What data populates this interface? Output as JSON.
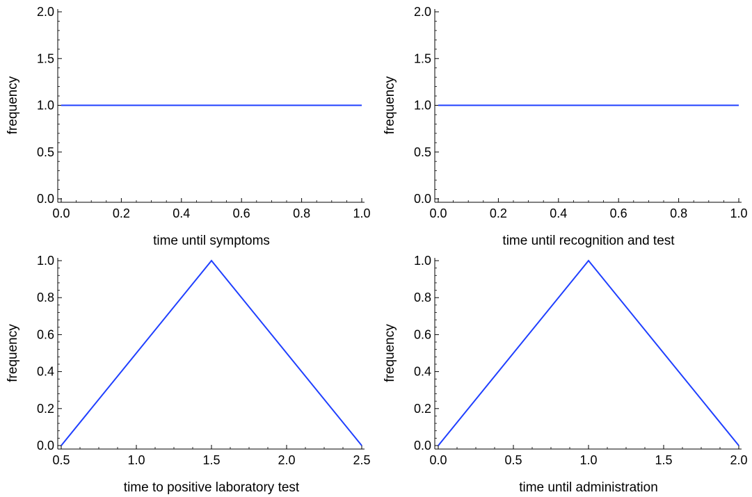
{
  "colors": {
    "series": "#1f3fff",
    "axis": "#000000"
  },
  "chart_data": [
    {
      "type": "line",
      "xlabel": "time until symptoms",
      "ylabel": "frequency",
      "xlim": [
        0.0,
        1.0
      ],
      "ylim": [
        0.0,
        2.0
      ],
      "xticks": [
        "0.0",
        "0.2",
        "0.4",
        "0.6",
        "0.8",
        "1.0"
      ],
      "yticks": [
        "0.0",
        "0.5",
        "1.0",
        "1.5",
        "2.0"
      ],
      "grid": false,
      "series": [
        {
          "x": [
            0.0,
            1.0
          ],
          "y": [
            1.0,
            1.0
          ]
        }
      ]
    },
    {
      "type": "line",
      "xlabel": "time until recognition and test",
      "ylabel": "frequency",
      "xlim": [
        0.0,
        1.0
      ],
      "ylim": [
        0.0,
        2.0
      ],
      "xticks": [
        "0.0",
        "0.2",
        "0.4",
        "0.6",
        "0.8",
        "1.0"
      ],
      "yticks": [
        "0.0",
        "0.5",
        "1.0",
        "1.5",
        "2.0"
      ],
      "grid": false,
      "series": [
        {
          "x": [
            0.0,
            1.0
          ],
          "y": [
            1.0,
            1.0
          ]
        }
      ]
    },
    {
      "type": "line",
      "xlabel": "time to positive laboratory test",
      "ylabel": "frequency",
      "xlim": [
        0.5,
        2.5
      ],
      "ylim": [
        0.0,
        1.0
      ],
      "xticks": [
        "0.5",
        "1.0",
        "1.5",
        "2.0",
        "2.5"
      ],
      "yticks": [
        "0.0",
        "0.2",
        "0.4",
        "0.6",
        "0.8",
        "1.0"
      ],
      "grid": false,
      "series": [
        {
          "x": [
            0.5,
            1.5,
            2.5
          ],
          "y": [
            0.0,
            1.0,
            0.0
          ]
        }
      ]
    },
    {
      "type": "line",
      "xlabel": "time until administration",
      "ylabel": "frequency",
      "xlim": [
        0.0,
        2.0
      ],
      "ylim": [
        0.0,
        1.0
      ],
      "xticks": [
        "0.0",
        "0.5",
        "1.0",
        "1.5",
        "2.0"
      ],
      "yticks": [
        "0.0",
        "0.2",
        "0.4",
        "0.6",
        "0.8",
        "1.0"
      ],
      "grid": false,
      "series": [
        {
          "x": [
            0.0,
            1.0,
            2.0
          ],
          "y": [
            0.0,
            1.0,
            0.0
          ]
        }
      ]
    }
  ]
}
